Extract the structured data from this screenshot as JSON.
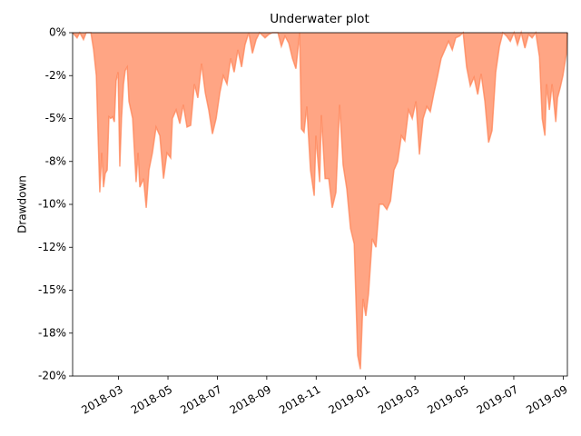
{
  "chart_data": {
    "type": "area",
    "title": "Underwater plot",
    "ylabel": "Drawdown",
    "color": "#ff7f50",
    "alpha": 0.7,
    "grid": false,
    "xlim": [
      0.14,
      20.17
    ],
    "xticks": [
      {
        "value": 2,
        "label": "2018-03"
      },
      {
        "value": 4,
        "label": "2018-05"
      },
      {
        "value": 6,
        "label": "2018-07"
      },
      {
        "value": 8,
        "label": "2018-09"
      },
      {
        "value": 10,
        "label": "2018-11"
      },
      {
        "value": 12,
        "label": "2019-01"
      },
      {
        "value": 14,
        "label": "2019-03"
      },
      {
        "value": 16,
        "label": "2019-05"
      },
      {
        "value": 18,
        "label": "2019-07"
      },
      {
        "value": 20,
        "label": "2019-09"
      }
    ],
    "ylim": [
      -20,
      0
    ],
    "yticks": [
      {
        "value": -20,
        "label": "-20%"
      },
      {
        "value": -17.5,
        "label": "-18%"
      },
      {
        "value": -15,
        "label": "-15%"
      },
      {
        "value": -12.5,
        "label": "-12%"
      },
      {
        "value": -10,
        "label": "-10%"
      },
      {
        "value": -7.5,
        "label": "-8%"
      },
      {
        "value": -5,
        "label": "-5%"
      },
      {
        "value": -2.5,
        "label": "-2%"
      },
      {
        "value": 0,
        "label": "0%"
      }
    ],
    "x": [
      0.14,
      0.32,
      0.43,
      0.58,
      0.69,
      0.88,
      0.99,
      1.1,
      1.17,
      1.24,
      1.32,
      1.39,
      1.46,
      1.54,
      1.61,
      1.68,
      1.76,
      1.83,
      1.9,
      1.98,
      2.05,
      2.12,
      2.2,
      2.27,
      2.35,
      2.42,
      2.57,
      2.71,
      2.79,
      2.86,
      3.01,
      3.12,
      3.23,
      3.37,
      3.52,
      3.67,
      3.82,
      3.96,
      4.11,
      4.18,
      4.33,
      4.48,
      4.62,
      4.77,
      4.92,
      5.07,
      5.21,
      5.36,
      5.51,
      5.65,
      5.8,
      5.95,
      6.1,
      6.24,
      6.39,
      6.54,
      6.68,
      6.83,
      6.98,
      7.12,
      7.27,
      7.42,
      7.57,
      7.71,
      7.93,
      8.08,
      8.23,
      8.45,
      8.59,
      8.74,
      8.89,
      9.04,
      9.18,
      9.33,
      9.4,
      9.51,
      9.62,
      9.77,
      9.92,
      9.99,
      10.14,
      10.21,
      10.36,
      10.51,
      10.65,
      10.8,
      10.95,
      11.09,
      11.24,
      11.39,
      11.54,
      11.68,
      11.79,
      11.9,
      12.01,
      12.12,
      12.27,
      12.42,
      12.56,
      12.71,
      12.86,
      13.01,
      13.15,
      13.3,
      13.45,
      13.59,
      13.74,
      13.89,
      14.04,
      14.18,
      14.33,
      14.48,
      14.62,
      14.77,
      14.92,
      15.06,
      15.21,
      15.36,
      15.51,
      15.65,
      15.8,
      15.95,
      16.09,
      16.24,
      16.39,
      16.54,
      16.68,
      16.83,
      16.98,
      17.12,
      17.27,
      17.42,
      17.56,
      17.71,
      17.86,
      18.01,
      18.15,
      18.3,
      18.45,
      18.6,
      18.74,
      18.89,
      19.04,
      19.15,
      19.26,
      19.33,
      19.44,
      19.55,
      19.7,
      19.77,
      19.88,
      19.99,
      20.13,
      20.17
    ],
    "values": [
      0,
      -0.3,
      0,
      -0.4,
      0,
      0,
      -1.0,
      -2.5,
      -6,
      -9.3,
      -7,
      -9,
      -8.2,
      -8,
      -4.9,
      -5,
      -4.9,
      -5.2,
      -2.8,
      -2.3,
      -7.8,
      -5,
      -3,
      -2.2,
      -2,
      -4,
      -5,
      -8.7,
      -7,
      -9,
      -8.5,
      -10.2,
      -8,
      -7,
      -5.5,
      -6,
      -8.5,
      -7,
      -7.3,
      -5,
      -4.5,
      -5.3,
      -4.2,
      -5.5,
      -5.4,
      -3,
      -3.8,
      -1.8,
      -3.5,
      -4.5,
      -5.9,
      -5,
      -3.5,
      -2.5,
      -3,
      -1.5,
      -2.3,
      -1,
      -2,
      -0.7,
      0,
      -1.2,
      -0.4,
      0,
      -0.3,
      -0.1,
      0,
      0,
      -0.8,
      -0.2,
      -0.6,
      -1.5,
      -2.1,
      0,
      -5.6,
      -5.8,
      -4.3,
      -8,
      -9.5,
      -6,
      -8.7,
      -4.8,
      -8.5,
      -8.5,
      -10.2,
      -9.3,
      -4.2,
      -7.7,
      -9.1,
      -11.4,
      -12.3,
      -18.8,
      -19.6,
      -15.5,
      -16.5,
      -15.2,
      -12,
      -12.5,
      -10,
      -10,
      -10.3,
      -9.8,
      -8,
      -7.5,
      -6,
      -6.3,
      -4.5,
      -5,
      -4,
      -7.1,
      -5,
      -4.3,
      -4.6,
      -3.5,
      -2.5,
      -1.5,
      -1,
      -0.5,
      -1,
      -0.3,
      -0.2,
      0,
      -2,
      -3.1,
      -2.6,
      -3.6,
      -2.4,
      -4,
      -6.4,
      -5.7,
      -2.3,
      -0.8,
      0,
      -0.2,
      -0.5,
      0,
      -0.7,
      0,
      -0.9,
      -0.1,
      -0.3,
      0,
      -1.4,
      -5,
      -6,
      -3,
      -4.5,
      -3,
      -5.2,
      -3.8,
      -3.2,
      -2.5,
      -1.2,
      0
    ]
  }
}
